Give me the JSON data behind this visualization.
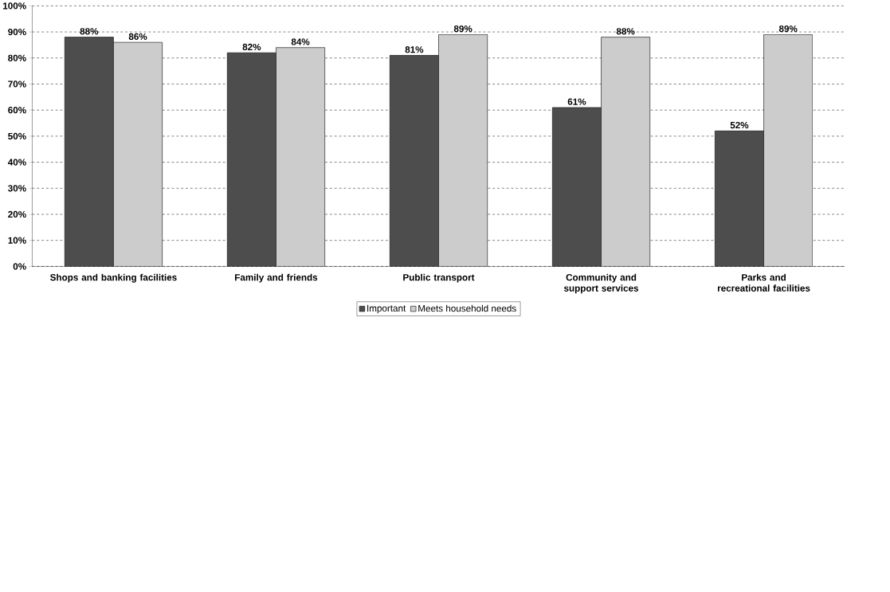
{
  "chart_data": {
    "type": "bar",
    "categories": [
      "Shops and banking facilities",
      "Family and friends",
      "Public transport",
      "Community and support services",
      "Parks and recreational facilities"
    ],
    "series": [
      {
        "name": "Important",
        "color": "#4d4d4d",
        "values": [
          88,
          82,
          81,
          61,
          52
        ],
        "value_labels": [
          "88%",
          "82%",
          "81%",
          "61%",
          "52%"
        ]
      },
      {
        "name": "Meets household needs",
        "color": "#cccccc",
        "values": [
          86,
          84,
          89,
          88,
          89
        ],
        "value_labels": [
          "86%",
          "84%",
          "89%",
          "88%",
          "89%"
        ]
      }
    ],
    "ylim": [
      0,
      100
    ],
    "yticks": [
      {
        "value": 0,
        "label": "0%"
      },
      {
        "value": 10,
        "label": "10%"
      },
      {
        "value": 20,
        "label": "20%"
      },
      {
        "value": 30,
        "label": "30%"
      },
      {
        "value": 40,
        "label": "40%"
      },
      {
        "value": 50,
        "label": "50%"
      },
      {
        "value": 60,
        "label": "60%"
      },
      {
        "value": 70,
        "label": "70%"
      },
      {
        "value": 80,
        "label": "80%"
      },
      {
        "value": 90,
        "label": "90%"
      },
      {
        "value": 100,
        "label": "100%"
      }
    ],
    "grid": "y",
    "legend": "bottom"
  }
}
